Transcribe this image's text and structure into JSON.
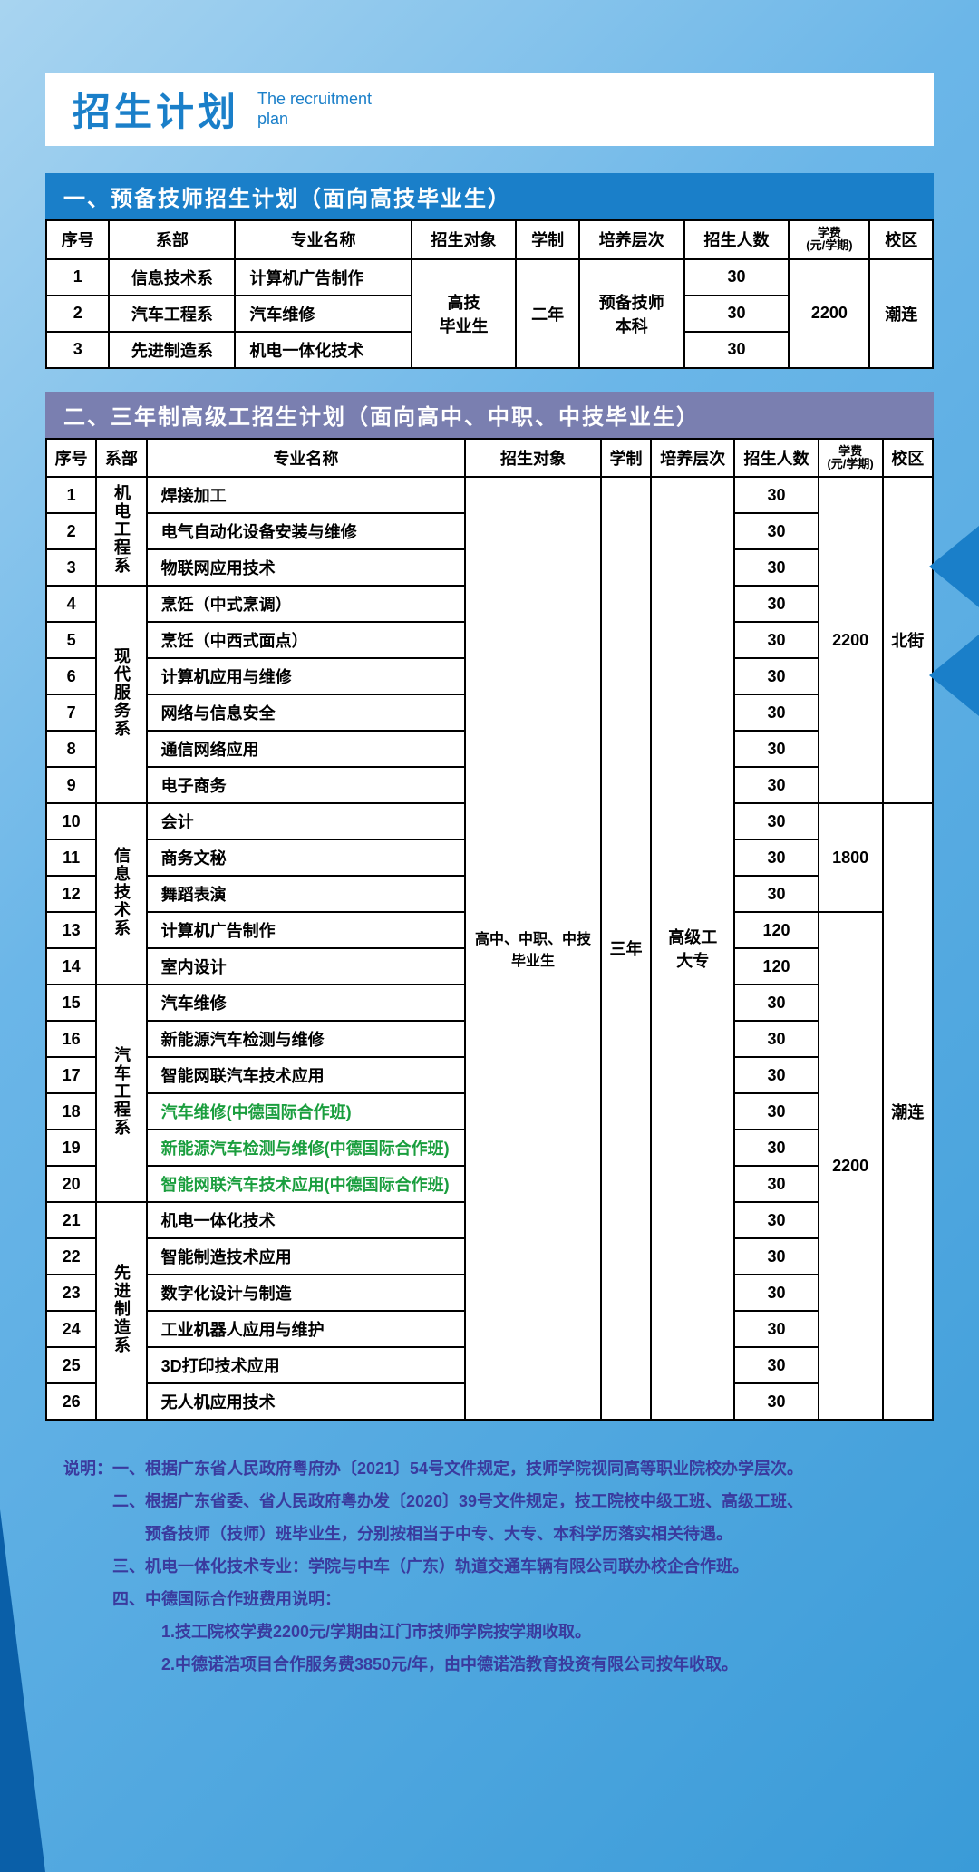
{
  "title": {
    "main": "招生计划",
    "sub_line1": "The recruitment",
    "sub_line2": "plan"
  },
  "section1": {
    "header": "一、预备技师招生计划（面向高技毕业生）",
    "columns": {
      "seq": "序号",
      "dept": "系部",
      "major": "专业名称",
      "target": "招生对象",
      "duration": "学制",
      "level": "培养层次",
      "enroll": "招生人数",
      "fee": "学费",
      "fee_unit": "(元/学期)",
      "campus": "校区"
    },
    "rows": [
      {
        "seq": "1",
        "dept": "信息技术系",
        "major": "计算机广告制作",
        "enroll": "30"
      },
      {
        "seq": "2",
        "dept": "汽车工程系",
        "major": "汽车维修",
        "enroll": "30"
      },
      {
        "seq": "3",
        "dept": "先进制造系",
        "major": "机电一体化技术",
        "enroll": "30"
      }
    ],
    "merged": {
      "target": "高技\n毕业生",
      "duration": "二年",
      "level": "预备技师\n本科",
      "fee": "2200",
      "campus": "潮连"
    }
  },
  "section2": {
    "header": "二、三年制高级工招生计划（面向高中、中职、中技毕业生）",
    "columns": {
      "seq": "序号",
      "dept": "系部",
      "major": "专业名称",
      "target": "招生对象",
      "duration": "学制",
      "level": "培养层次",
      "enroll": "招生人数",
      "fee": "学费",
      "fee_unit": "(元/学期)",
      "campus": "校区"
    },
    "depts": [
      {
        "name": "机电工程系",
        "span": 3
      },
      {
        "name": "现代服务系",
        "span": 6
      },
      {
        "name": "信息技术系",
        "span": 5
      },
      {
        "name": "汽车工程系",
        "span": 6
      },
      {
        "name": "先进制造系",
        "span": 6
      }
    ],
    "rows": [
      {
        "seq": "1",
        "major": "焊接加工",
        "enroll": "30"
      },
      {
        "seq": "2",
        "major": "电气自动化设备安装与维修",
        "enroll": "30"
      },
      {
        "seq": "3",
        "major": "物联网应用技术",
        "enroll": "30"
      },
      {
        "seq": "4",
        "major": "烹饪（中式烹调）",
        "enroll": "30"
      },
      {
        "seq": "5",
        "major": "烹饪（中西式面点）",
        "enroll": "30"
      },
      {
        "seq": "6",
        "major": "计算机应用与维修",
        "enroll": "30"
      },
      {
        "seq": "7",
        "major": "网络与信息安全",
        "enroll": "30"
      },
      {
        "seq": "8",
        "major": "通信网络应用",
        "enroll": "30"
      },
      {
        "seq": "9",
        "major": "电子商务",
        "enroll": "30"
      },
      {
        "seq": "10",
        "major": "会计",
        "enroll": "30"
      },
      {
        "seq": "11",
        "major": "商务文秘",
        "enroll": "30"
      },
      {
        "seq": "12",
        "major": "舞蹈表演",
        "enroll": "30"
      },
      {
        "seq": "13",
        "major": "计算机广告制作",
        "enroll": "120"
      },
      {
        "seq": "14",
        "major": "室内设计",
        "enroll": "120"
      },
      {
        "seq": "15",
        "major": "汽车维修",
        "enroll": "30"
      },
      {
        "seq": "16",
        "major": "新能源汽车检测与维修",
        "enroll": "30"
      },
      {
        "seq": "17",
        "major": "智能网联汽车技术应用",
        "enroll": "30"
      },
      {
        "seq": "18",
        "major": "汽车维修(中德国际合作班)",
        "enroll": "30",
        "green": true
      },
      {
        "seq": "19",
        "major": "新能源汽车检测与维修(中德国际合作班)",
        "enroll": "30",
        "green": true
      },
      {
        "seq": "20",
        "major": "智能网联汽车技术应用(中德国际合作班)",
        "enroll": "30",
        "green": true
      },
      {
        "seq": "21",
        "major": "机电一体化技术",
        "enroll": "30"
      },
      {
        "seq": "22",
        "major": "智能制造技术应用",
        "enroll": "30"
      },
      {
        "seq": "23",
        "major": "数字化设计与制造",
        "enroll": "30"
      },
      {
        "seq": "24",
        "major": "工业机器人应用与维护",
        "enroll": "30"
      },
      {
        "seq": "25",
        "major": "3D打印技术应用",
        "enroll": "30"
      },
      {
        "seq": "26",
        "major": "无人机应用技术",
        "enroll": "30"
      }
    ],
    "merged": {
      "target": "高中、中职、中技\n毕业生",
      "duration": "三年",
      "level": "高级工\n大专"
    },
    "fee_groups": [
      {
        "fee": "2200",
        "span": 9
      },
      {
        "fee": "1800",
        "span": 3
      },
      {
        "fee": "2200",
        "span": 14
      }
    ],
    "campus_groups": [
      {
        "campus": "北街",
        "span": 9
      },
      {
        "campus": "潮连",
        "span": 17
      }
    ]
  },
  "notes": {
    "intro": "说明：",
    "items": [
      "一、根据广东省人民政府粤府办〔2021〕54号文件规定，技师学院视同高等职业院校办学层次。",
      "二、根据广东省委、省人民政府粤办发〔2020〕39号文件规定，技工院校中级工班、高级工班、",
      "　　预备技师（技师）班毕业生，分别按相当于中专、大专、本科学历落实相关待遇。",
      "三、机电一体化技术专业：学院与中车（广东）轨道交通车辆有限公司联办校企合作班。",
      "四、中德国际合作班费用说明：",
      "　　　1.技工院校学费2200元/学期由江门市技师学院按学期收取。",
      "　　　2.中德诺浩项目合作服务费3850元/年，由中德诺浩教育投资有限公司按年收取。"
    ]
  }
}
